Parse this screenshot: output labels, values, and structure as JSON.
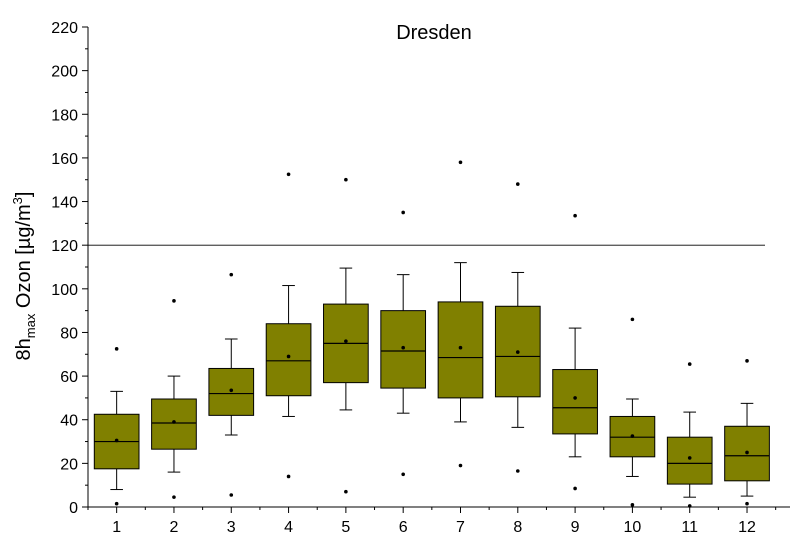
{
  "chart_data": {
    "type": "box",
    "title": "Dresden",
    "xlabel": "",
    "ylabel": {
      "main": "8h",
      "subscript": "max",
      "middle": " Ozon [µg/m",
      "superscript": "3",
      "end": "]"
    },
    "ylim": [
      0,
      220
    ],
    "yticks": [
      0,
      20,
      40,
      60,
      80,
      100,
      120,
      140,
      160,
      180,
      200,
      220
    ],
    "xlim": [
      0.5,
      12.75
    ],
    "categories": [
      "1",
      "2",
      "3",
      "4",
      "5",
      "6",
      "7",
      "8",
      "9",
      "10",
      "11",
      "12"
    ],
    "box_color": "#808000",
    "reference_line": 120,
    "boxes": [
      {
        "x": 1,
        "q1": 17.5,
        "median": 30,
        "q3": 42.5,
        "whisker_low": 8,
        "whisker_high": 53,
        "mean": 30.5,
        "min": 1.5,
        "max": 72.5
      },
      {
        "x": 2,
        "q1": 26.5,
        "median": 38.5,
        "q3": 49.5,
        "whisker_low": 16,
        "whisker_high": 60,
        "mean": 39,
        "min": 4.5,
        "max": 94.5
      },
      {
        "x": 3,
        "q1": 42,
        "median": 52,
        "q3": 63.5,
        "whisker_low": 33,
        "whisker_high": 77,
        "mean": 53.5,
        "min": 5.5,
        "max": 106.5
      },
      {
        "x": 4,
        "q1": 51,
        "median": 67,
        "q3": 84,
        "whisker_low": 41.5,
        "whisker_high": 101.5,
        "mean": 69,
        "min": 14,
        "max": 152.5
      },
      {
        "x": 5,
        "q1": 57,
        "median": 75,
        "q3": 93,
        "whisker_low": 44.5,
        "whisker_high": 109.5,
        "mean": 76,
        "min": 7,
        "max": 150
      },
      {
        "x": 6,
        "q1": 54.5,
        "median": 71.5,
        "q3": 90,
        "whisker_low": 43,
        "whisker_high": 106.5,
        "mean": 73,
        "min": 15,
        "max": 135
      },
      {
        "x": 7,
        "q1": 50,
        "median": 68.5,
        "q3": 94,
        "whisker_low": 39,
        "whisker_high": 112,
        "mean": 73,
        "min": 19,
        "max": 158
      },
      {
        "x": 8,
        "q1": 50.5,
        "median": 69,
        "q3": 92,
        "whisker_low": 36.5,
        "whisker_high": 107.5,
        "mean": 71,
        "min": 16.5,
        "max": 148
      },
      {
        "x": 9,
        "q1": 33.5,
        "median": 45.5,
        "q3": 63,
        "whisker_low": 23,
        "whisker_high": 82,
        "mean": 50,
        "min": 8.5,
        "max": 133.5
      },
      {
        "x": 10,
        "q1": 23,
        "median": 32,
        "q3": 41.5,
        "whisker_low": 14,
        "whisker_high": 49.5,
        "mean": 32.5,
        "min": 1,
        "max": 86
      },
      {
        "x": 11,
        "q1": 10.5,
        "median": 20,
        "q3": 32,
        "whisker_low": 4.5,
        "whisker_high": 43.5,
        "mean": 22.5,
        "min": 0.5,
        "max": 65.5
      },
      {
        "x": 12,
        "q1": 12,
        "median": 23.5,
        "q3": 37,
        "whisker_low": 5,
        "whisker_high": 47.5,
        "mean": 25,
        "min": 1.5,
        "max": 67
      }
    ]
  }
}
